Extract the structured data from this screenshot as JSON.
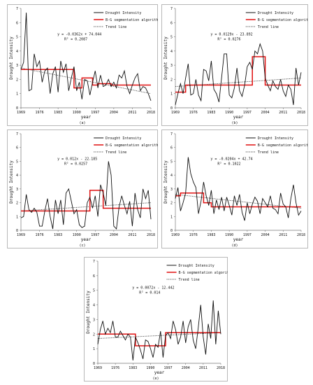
{
  "chart_data": [
    {
      "type": "line",
      "panel_label": "(a)",
      "xlabel": "year",
      "ylabel": "Drought Intensity",
      "xlim": [
        1969,
        2018
      ],
      "ylim": [
        0,
        7
      ],
      "yticks": [
        0,
        1,
        2,
        3,
        4,
        5,
        6,
        7
      ],
      "xticks": [
        1969,
        1976,
        1983,
        1990,
        1997,
        2004,
        2011,
        2018
      ],
      "equation": "y = -0.0362x + 74.044",
      "r2": "R² = 0.2087",
      "legend": [
        "Drought Intensity",
        "B-G segmentation algorithm",
        "Trend line"
      ],
      "legend_position": "top-right",
      "series": [
        {
          "name": "Drought Intensity",
          "x": [
            1969,
            1970,
            1971,
            1972,
            1973,
            1974,
            1975,
            1976,
            1977,
            1978,
            1979,
            1980,
            1981,
            1982,
            1983,
            1984,
            1985,
            1986,
            1987,
            1988,
            1989,
            1990,
            1991,
            1992,
            1993,
            1994,
            1995,
            1996,
            1997,
            1998,
            1999,
            2000,
            2001,
            2002,
            2003,
            2004,
            2005,
            2006,
            2007,
            2008,
            2009,
            2010,
            2011,
            2012,
            2013,
            2014,
            2015,
            2016,
            2017,
            2018
          ],
          "y": [
            2.7,
            3.2,
            6.7,
            1.2,
            1.3,
            3.8,
            2.9,
            3.3,
            1.8,
            2.6,
            2.8,
            1.0,
            2.4,
            2.9,
            1.1,
            3.3,
            2.5,
            3.1,
            1.2,
            2.1,
            2.9,
            1.2,
            1.8,
            0.6,
            2.0,
            1.9,
            0.9,
            1.8,
            2.6,
            1.4,
            2.3,
            1.5,
            1.6,
            2.0,
            1.5,
            1.8,
            1.4,
            2.3,
            2.1,
            2.6,
            1.5,
            1.0,
            1.6,
            2.1,
            2.4,
            1.2,
            1.5,
            1.4,
            1.0,
            0.5
          ]
        },
        {
          "name": "B-G segmentation algorithm",
          "segments": [
            [
              1969,
              1989,
              2.7
            ],
            [
              1989,
              1992,
              1.4
            ],
            [
              1992,
              1996,
              2.1
            ],
            [
              1996,
              1998,
              1.6
            ],
            [
              1998,
              2003,
              1.7
            ],
            [
              2003,
              2018,
              1.6
            ]
          ]
        },
        {
          "name": "Trend line",
          "x": [
            1969,
            2018
          ],
          "y": [
            2.8,
            1.0
          ]
        }
      ]
    },
    {
      "type": "line",
      "panel_label": "(b)",
      "xlabel": "year",
      "ylabel": "Drought Intensity",
      "xlim": [
        1969,
        2018
      ],
      "ylim": [
        0,
        7
      ],
      "yticks": [
        0,
        1,
        2,
        3,
        4,
        5,
        6,
        7
      ],
      "xticks": [
        1969,
        1976,
        1983,
        1990,
        1997,
        2004,
        2011,
        2018
      ],
      "equation": "y = 0.0129x - 23.892",
      "r2": "R² = 0.0276",
      "legend": [
        "Drought Intensity",
        "B-G segmentation algorithm",
        "Trend line"
      ],
      "legend_position": "top-right",
      "series": [
        {
          "name": "Drought Intensity",
          "x": [
            1969,
            1970,
            1971,
            1972,
            1973,
            1974,
            1975,
            1976,
            1977,
            1978,
            1979,
            1980,
            1981,
            1982,
            1983,
            1984,
            1985,
            1986,
            1987,
            1988,
            1989,
            1990,
            1991,
            1992,
            1993,
            1994,
            1995,
            1996,
            1997,
            1998,
            1999,
            2000,
            2001,
            2002,
            2003,
            2004,
            2005,
            2006,
            2007,
            2008,
            2009,
            2010,
            2011,
            2012,
            2013,
            2014,
            2015,
            2016,
            2017,
            2018
          ],
          "y": [
            0.2,
            1.0,
            1.7,
            1.0,
            2.1,
            3.1,
            0.9,
            1.0,
            2.0,
            0.9,
            0.5,
            2.7,
            2.6,
            1.9,
            3.3,
            1.3,
            1.0,
            0.4,
            2.1,
            3.8,
            3.8,
            0.9,
            0.7,
            1.4,
            2.8,
            1.2,
            0.8,
            1.6,
            2.9,
            3.2,
            2.7,
            4.0,
            3.8,
            4.5,
            4.0,
            2.1,
            1.6,
            1.2,
            1.9,
            1.5,
            1.3,
            2.0,
            1.2,
            0.8,
            1.6,
            1.3,
            0.2,
            2.8,
            1.6,
            2.5
          ]
        },
        {
          "name": "B-G segmentation algorithm",
          "segments": [
            [
              1969,
              1973,
              1.1
            ],
            [
              1973,
              1999,
              1.6
            ],
            [
              1999,
              2004,
              3.6
            ],
            [
              2004,
              2018,
              1.6
            ]
          ]
        },
        {
          "name": "Trend line",
          "x": [
            1969,
            2018
          ],
          "y": [
            1.5,
            2.1
          ]
        }
      ]
    },
    {
      "type": "line",
      "panel_label": "(c)",
      "xlabel": "year",
      "ylabel": "Drought Intensity",
      "xlim": [
        1969,
        2018
      ],
      "ylim": [
        0,
        7
      ],
      "yticks": [
        0,
        1,
        2,
        3,
        4,
        5,
        6,
        7
      ],
      "xticks": [
        1969,
        1976,
        1983,
        1990,
        1997,
        2004,
        2011,
        2018
      ],
      "equation": "y = 0.012x - 22.185",
      "r2": "R² = 0.0257",
      "legend": [
        "Drought Intensity",
        "B-G segmentation algorithm",
        "Trend line"
      ],
      "legend_position": "top-right",
      "series": [
        {
          "name": "Drought Intensity",
          "x": [
            1969,
            1970,
            1971,
            1972,
            1973,
            1974,
            1975,
            1976,
            1977,
            1978,
            1979,
            1980,
            1981,
            1982,
            1983,
            1984,
            1985,
            1986,
            1987,
            1988,
            1989,
            1990,
            1991,
            1992,
            1993,
            1994,
            1995,
            1996,
            1997,
            1998,
            1999,
            2000,
            2001,
            2002,
            2003,
            2004,
            2005,
            2006,
            2007,
            2008,
            2009,
            2010,
            2011,
            2012,
            2013,
            2014,
            2015,
            2016,
            2017,
            2018
          ],
          "y": [
            0.9,
            1.0,
            2.6,
            1.5,
            1.3,
            1.6,
            1.3,
            0.3,
            0.3,
            1.4,
            2.3,
            1.0,
            0.1,
            2.2,
            1.2,
            2.2,
            0.4,
            2.7,
            3.0,
            2.1,
            1.2,
            1.5,
            0.4,
            0.2,
            0.3,
            2.0,
            2.4,
            1.6,
            2.5,
            1.0,
            3.3,
            2.7,
            1.8,
            5.0,
            4.0,
            0.3,
            0.1,
            1.7,
            2.5,
            1.8,
            1.2,
            2.1,
            0.3,
            2.7,
            1.5,
            0.9,
            3.0,
            2.3,
            2.9,
            0.8
          ]
        },
        {
          "name": "B-G segmentation algorithm",
          "segments": [
            [
              1969,
              1995,
              1.4
            ],
            [
              1995,
              2000,
              2.9
            ],
            [
              2000,
              2018,
              1.6
            ]
          ]
        },
        {
          "name": "Trend line",
          "x": [
            1969,
            2018
          ],
          "y": [
            1.4,
            2.0
          ]
        }
      ]
    },
    {
      "type": "line",
      "panel_label": "(d)",
      "xlabel": "year",
      "ylabel": "Drought Intensity",
      "xlim": [
        1969,
        2018
      ],
      "ylim": [
        0,
        7
      ],
      "yticks": [
        0,
        1,
        2,
        3,
        4,
        5,
        6,
        7
      ],
      "xticks": [
        1969,
        1976,
        1983,
        1990,
        1997,
        2004,
        2011,
        2018
      ],
      "equation": "y = -0.0204x + 42.74",
      "r2": "R² = 0.1022",
      "legend": [
        "Drought Intensity",
        "B-G segmentation algorithm",
        "Trend line"
      ],
      "legend_position": "top-right",
      "series": [
        {
          "name": "Drought Intensity",
          "x": [
            1969,
            1970,
            1971,
            1972,
            1973,
            1974,
            1975,
            1976,
            1977,
            1978,
            1979,
            1980,
            1981,
            1982,
            1983,
            1984,
            1985,
            1986,
            1987,
            1988,
            1989,
            1990,
            1991,
            1992,
            1993,
            1994,
            1995,
            1996,
            1997,
            1998,
            1999,
            2000,
            2001,
            2002,
            2003,
            2004,
            2005,
            2006,
            2007,
            2008,
            2009,
            2010,
            2011,
            2012,
            2013,
            2014,
            2015,
            2016,
            2017,
            2018
          ],
          "y": [
            2.3,
            3.1,
            1.4,
            2.0,
            2.7,
            5.3,
            4.1,
            3.5,
            3.1,
            1.2,
            2.1,
            3.5,
            2.5,
            1.8,
            2.9,
            1.2,
            2.2,
            1.5,
            2.4,
            1.4,
            2.4,
            1.8,
            1.1,
            2.5,
            1.8,
            2.6,
            1.3,
            0.7,
            2.0,
            1.2,
            1.9,
            2.4,
            2.1,
            1.2,
            2.3,
            2.0,
            1.7,
            2.5,
            1.6,
            1.5,
            1.2,
            2.7,
            1.9,
            1.7,
            0.9,
            2.3,
            3.3,
            2.0,
            1.1,
            1.4
          ]
        },
        {
          "name": "B-G segmentation algorithm",
          "segments": [
            [
              1969,
              1971,
              2.5
            ],
            [
              1971,
              1980,
              2.7
            ],
            [
              1980,
              1983,
              2.0
            ],
            [
              1983,
              2018,
              1.7
            ]
          ]
        },
        {
          "name": "Trend line",
          "x": [
            1969,
            2018
          ],
          "y": [
            2.6,
            1.6
          ]
        }
      ]
    },
    {
      "type": "line",
      "panel_label": "(e)",
      "xlabel": "year",
      "ylabel": "Drought Intensity",
      "xlim": [
        1969,
        2018
      ],
      "ylim": [
        0,
        7
      ],
      "yticks": [
        0,
        1,
        2,
        3,
        4,
        5,
        6,
        7
      ],
      "xticks": [
        1969,
        1976,
        1983,
        1990,
        1997,
        2004,
        2011,
        2018
      ],
      "equation": "y = 0.0072x - 12.442",
      "r2": "R² = 0.014",
      "legend": [
        "Drought Intensity",
        "B-G segmentation algorithm",
        "Trend line"
      ],
      "legend_position": "top-right",
      "series": [
        {
          "name": "Drought Intensity",
          "x": [
            1969,
            1970,
            1971,
            1972,
            1973,
            1974,
            1975,
            1976,
            1977,
            1978,
            1979,
            1980,
            1981,
            1982,
            1983,
            1984,
            1985,
            1986,
            1987,
            1988,
            1989,
            1990,
            1991,
            1992,
            1993,
            1994,
            1995,
            1996,
            1997,
            1998,
            1999,
            2000,
            2001,
            2002,
            2003,
            2004,
            2005,
            2006,
            2007,
            2008,
            2009,
            2010,
            2011,
            2012,
            2013,
            2014,
            2015,
            2016,
            2017,
            2018
          ],
          "y": [
            1.3,
            2.3,
            2.9,
            2.0,
            2.4,
            2.1,
            2.9,
            1.8,
            1.8,
            2.2,
            1.9,
            1.6,
            2.0,
            1.8,
            0.2,
            1.8,
            1.4,
            0.9,
            0.3,
            1.6,
            1.5,
            1.0,
            0.4,
            1.3,
            1.1,
            2.2,
            0.4,
            1.9,
            2.1,
            1.7,
            2.9,
            2.3,
            1.3,
            1.8,
            2.9,
            1.4,
            2.5,
            3.0,
            1.6,
            1.0,
            2.4,
            4.0,
            1.8,
            0.6,
            2.7,
            1.7,
            4.3,
            1.3,
            3.6,
            2.0
          ]
        },
        {
          "name": "B-G segmentation algorithm",
          "segments": [
            [
              1969,
              1984,
              2.0
            ],
            [
              1984,
              1996,
              1.2
            ],
            [
              1996,
              2018,
              2.1
            ]
          ]
        },
        {
          "name": "Trend line",
          "x": [
            1969,
            2018
          ],
          "y": [
            1.7,
            2.1
          ]
        }
      ]
    }
  ]
}
